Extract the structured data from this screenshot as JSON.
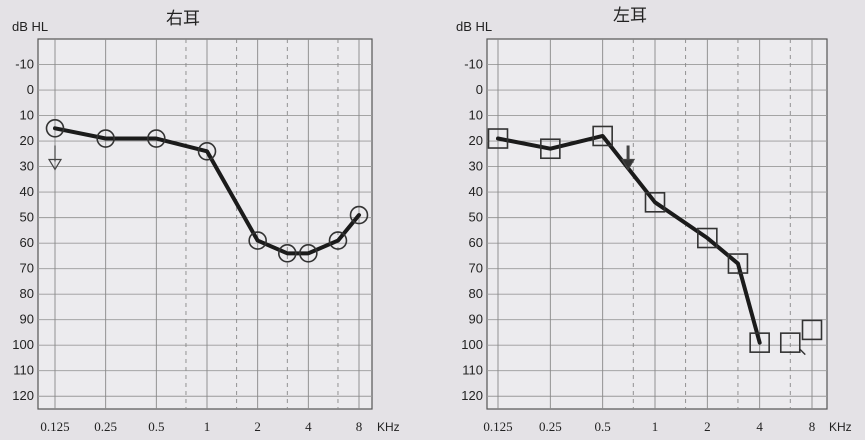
{
  "chart_data": [
    {
      "type": "line",
      "title": "右耳",
      "ylabel": "dB HL",
      "xlabel": "KHz",
      "x_scale": "log",
      "y_inverted": true,
      "ylim": [
        -20,
        125
      ],
      "y_ticks": [
        "-10",
        "0",
        "10",
        "20",
        "30",
        "40",
        "50",
        "60",
        "70",
        "80",
        "90",
        "100",
        "110",
        "120"
      ],
      "x_ticks": [
        "0.125",
        "0.25",
        "0.5",
        "1",
        "2",
        "4",
        "8"
      ],
      "grid": true,
      "marker": "circle",
      "series": [
        {
          "x": [
            0.125,
            0.25,
            0.5,
            1,
            2,
            3,
            4,
            6,
            8
          ],
          "y": [
            15,
            19,
            19,
            24,
            59,
            64,
            64,
            59,
            49
          ]
        }
      ],
      "annotations": [
        {
          "symbol": "down-arrow",
          "x": 0.125,
          "y": 28
        }
      ]
    },
    {
      "type": "line",
      "title": "左耳",
      "ylabel": "dB HL",
      "xlabel": "KHz",
      "x_scale": "log",
      "y_inverted": true,
      "ylim": [
        -20,
        125
      ],
      "y_ticks": [
        "-10",
        "0",
        "10",
        "20",
        "30",
        "40",
        "50",
        "60",
        "70",
        "80",
        "90",
        "100",
        "110",
        "120"
      ],
      "x_ticks": [
        "0.125",
        "0.25",
        "0.5",
        "1",
        "2",
        "4",
        "8"
      ],
      "grid": true,
      "marker": "square",
      "series": [
        {
          "x": [
            0.125,
            0.25,
            0.5,
            1,
            2,
            3,
            4
          ],
          "y": [
            19,
            23,
            18,
            44,
            58,
            68,
            99
          ]
        }
      ],
      "extra_points": [
        {
          "x": 6,
          "y": 99
        },
        {
          "x": 8,
          "y": 94
        }
      ],
      "annotations": [
        {
          "symbol": "down-arrow",
          "x": 0.7,
          "y": 28
        }
      ]
    }
  ]
}
